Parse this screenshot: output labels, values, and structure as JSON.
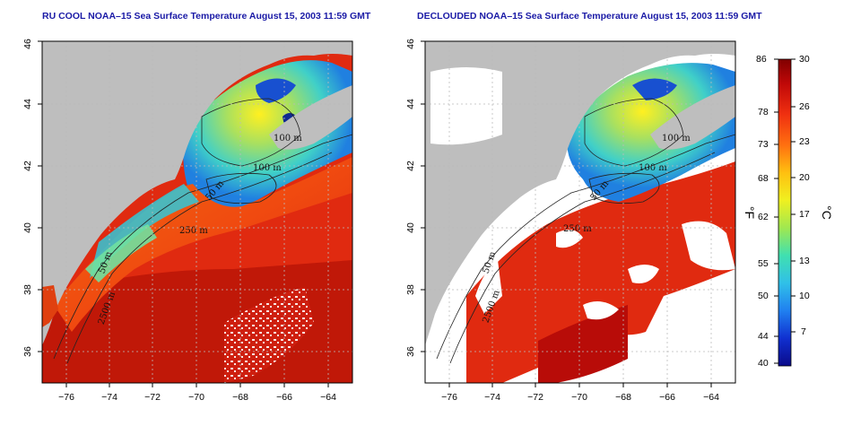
{
  "panels": [
    {
      "title": "RU COOL NOAA–15 Sea Surface Temperature August 15, 2003 11:59 GMT",
      "contours": [
        "100 m",
        "100 m",
        "50 m",
        "250 m",
        "50 m",
        "2500 m"
      ]
    },
    {
      "title": "DECLOUDED NOAA–15 Sea Surface Temperature August 15, 2003 11:59 GMT",
      "contours": [
        "100 m",
        "100 m",
        "50 m",
        "250 m",
        "50 m",
        "2500 m"
      ]
    }
  ],
  "axes": {
    "x_ticks": [
      "−76",
      "−74",
      "−72",
      "−70",
      "−68",
      "−66",
      "−64"
    ],
    "y_ticks": [
      "46",
      "44",
      "42",
      "40",
      "38",
      "36"
    ]
  },
  "colorbar": {
    "fahrenheit_label": "°F",
    "celsius_label": "°C",
    "fahrenheit_ticks": [
      "86",
      "78",
      "73",
      "68",
      "62",
      "55",
      "50",
      "44",
      "40"
    ],
    "celsius_ticks": [
      "30",
      "26",
      "23",
      "20",
      "17",
      "13",
      "10",
      "7"
    ],
    "colors": [
      "#0a0a8a",
      "#1030d0",
      "#2080f0",
      "#30c0e8",
      "#40e0b0",
      "#a0e850",
      "#f0f020",
      "#ffc010",
      "#ff7010",
      "#f03010",
      "#c00808",
      "#800000"
    ]
  },
  "colors": {
    "land": "#bebebe",
    "title": "#1a1aa6",
    "ocean_warm": "#e82a10",
    "ocean_hot": "#b80c08",
    "cloud": "#ffffff"
  }
}
